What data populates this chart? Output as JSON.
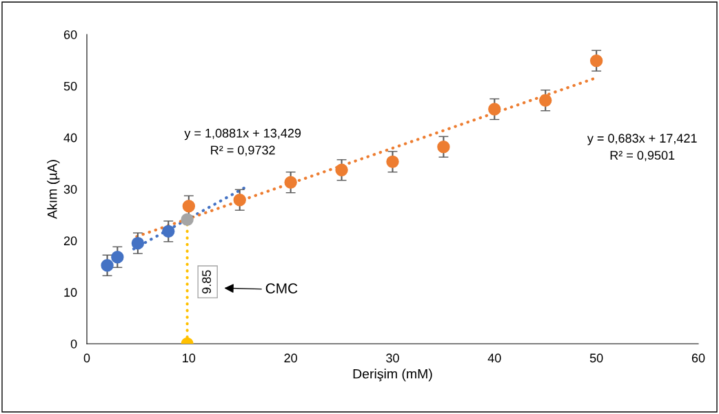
{
  "chart_data": {
    "type": "scatter",
    "xlabel": "Derişim (mM)",
    "ylabel": "Akım (µA)",
    "xlim": [
      0,
      60
    ],
    "xticks": [
      0,
      10,
      20,
      30,
      40,
      50,
      60
    ],
    "ylim": [
      0,
      60
    ],
    "yticks": [
      0,
      10,
      20,
      30,
      40,
      50,
      60
    ],
    "grid": false,
    "marker": "circle",
    "series": [
      {
        "type": "line",
        "color": "#4472c4",
        "line_style": "dotted",
        "marker": "none",
        "x": [
          4.6,
          15.6
        ],
        "values": [
          18.4,
          30.4
        ]
      },
      {
        "type": "line",
        "color": "#ed7d31",
        "line_style": "dotted",
        "marker": "none",
        "x": [
          4.9,
          50
        ],
        "values": [
          20.8,
          51.6
        ]
      },
      {
        "type": "line",
        "color": "#ffc000",
        "line_style": "dotted",
        "marker": "none",
        "x": [
          9.85,
          9.85
        ],
        "values": [
          0,
          24.1
        ]
      },
      {
        "color": "#4472c4",
        "x": [
          2,
          3,
          5,
          8
        ],
        "values": [
          15.2,
          16.8,
          19.5,
          21.8
        ],
        "errors": [
          2,
          2,
          2,
          2
        ]
      },
      {
        "color": "#ed7d31",
        "x": [
          10,
          15,
          20,
          25,
          30,
          35,
          40,
          45,
          50
        ],
        "values": [
          26.7,
          27.9,
          31.3,
          33.7,
          35.3,
          38.2,
          45.5,
          47.2,
          54.9
        ],
        "errors": [
          2,
          2,
          2,
          2,
          2,
          2,
          2,
          2,
          2
        ]
      },
      {
        "color": "#a5a5a5",
        "x": [
          9.85
        ],
        "values": [
          24.1
        ]
      },
      {
        "color": "#ffc000",
        "x": [
          9.85
        ],
        "values": [
          0
        ]
      }
    ],
    "annotations": [
      "y = 1,0881x + 13,429\nR² = 0,9732",
      "y = 0,683x + 17,421\nR² = 0,9501",
      {
        "text": "9.85",
        "x": 9.85,
        "y": 12
      },
      "CMC"
    ]
  }
}
